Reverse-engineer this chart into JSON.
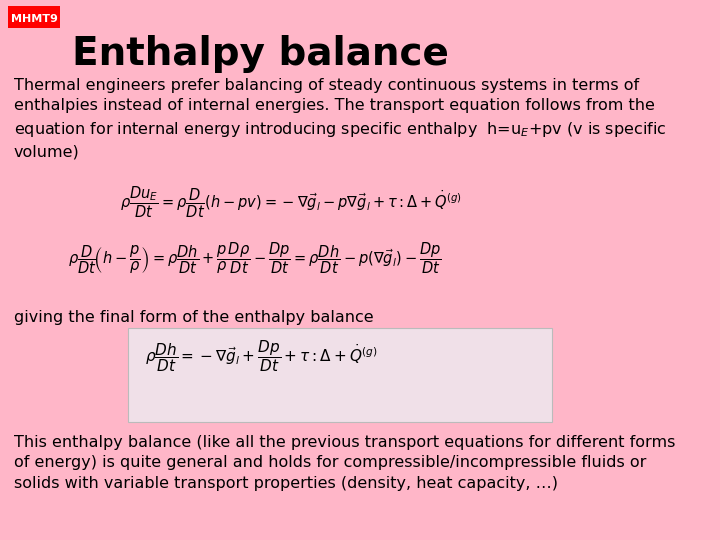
{
  "bg_color": "#FFB6C8",
  "header_bg": "#FF0000",
  "header_label": "MHMT9",
  "header_label_color": "#FFFFFF",
  "header_label_fontsize": 8,
  "title": "Enthalpy balance",
  "title_fontsize": 28,
  "title_color": "#000000",
  "body_fontsize": 11.5,
  "middle_text": "giving the final form of the enthalpy balance",
  "middle_fontsize": 11.5,
  "body_text_2": "This enthalpy balance (like all the previous transport equations for different forms\nof energy) is quite general and holds for compressible/incompressible fluids or\nsolids with variable transport properties (density, heat capacity, …)",
  "box_bg": "#F0E0E8",
  "box_edge": "#BBBBBB"
}
